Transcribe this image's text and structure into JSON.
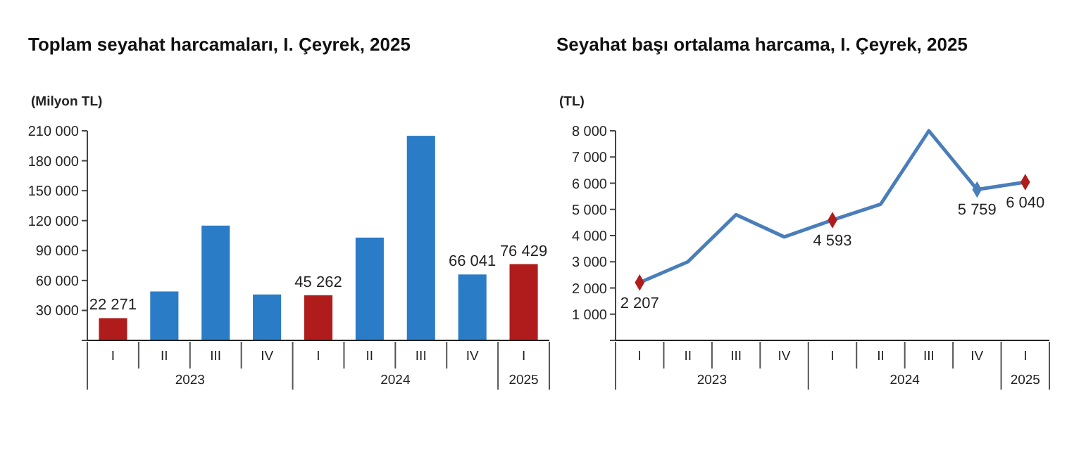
{
  "chart_data": [
    {
      "type": "bar",
      "title": "Toplam seyahat harcamaları, I. Çeyrek, 2025",
      "ylabel": "(Milyon TL)",
      "categories": [
        "I",
        "II",
        "III",
        "IV",
        "I",
        "II",
        "III",
        "IV",
        "I"
      ],
      "values": [
        22271,
        49000,
        115000,
        46000,
        45262,
        103000,
        205000,
        66041,
        76429
      ],
      "colors": [
        "#b01c1c",
        "#2a7cc7",
        "#2a7cc7",
        "#2a7cc7",
        "#b01c1c",
        "#2a7cc7",
        "#2a7cc7",
        "#2a7cc7",
        "#b01c1c"
      ],
      "value_labels": [
        "22 271",
        null,
        null,
        null,
        "45 262",
        null,
        null,
        "66 041",
        "76 429"
      ],
      "ylim": [
        0,
        210000
      ],
      "yticks": [
        {
          "value": 0,
          "label": null
        },
        {
          "value": 30000,
          "label": "30 000"
        },
        {
          "value": 60000,
          "label": "60 000"
        },
        {
          "value": 90000,
          "label": "90 000"
        },
        {
          "value": 120000,
          "label": "120 000"
        },
        {
          "value": 150000,
          "label": "150 000"
        },
        {
          "value": 180000,
          "label": "180 000"
        },
        {
          "value": 210000,
          "label": "210 000"
        }
      ],
      "annotations": [
        "2023",
        "2024",
        "2025"
      ],
      "grid": false
    },
    {
      "type": "line",
      "title": "Seyahat başı ortalama harcama, I. Çeyrek, 2025",
      "ylabel": "(TL)",
      "categories": [
        "I",
        "II",
        "III",
        "IV",
        "I",
        "II",
        "III",
        "IV",
        "I"
      ],
      "series": [
        {
          "color": "#4a7ebb",
          "marker": "none",
          "values": [
            2207,
            3000,
            4800,
            3950,
            4593,
            5200,
            8000,
            5759,
            6040
          ]
        },
        {
          "type": "scatter",
          "values": [
            2207,
            null,
            null,
            null,
            4593,
            null,
            null,
            5759,
            6040
          ],
          "colors": [
            "#b01c1c",
            null,
            null,
            null,
            "#b01c1c",
            null,
            null,
            "#4a7ebb",
            "#b01c1c"
          ],
          "value_labels": [
            "2 207",
            null,
            null,
            null,
            "4 593",
            null,
            null,
            "5 759",
            "6 040"
          ]
        }
      ],
      "ylim": [
        0,
        8000
      ],
      "yticks": [
        {
          "value": 0,
          "label": null
        },
        {
          "value": 1000,
          "label": "1 000"
        },
        {
          "value": 2000,
          "label": "2 000"
        },
        {
          "value": 3000,
          "label": "3 000"
        },
        {
          "value": 4000,
          "label": "4 000"
        },
        {
          "value": 5000,
          "label": "5 000"
        },
        {
          "value": 6000,
          "label": "6 000"
        },
        {
          "value": 7000,
          "label": "7 000"
        },
        {
          "value": 8000,
          "label": "8 000"
        }
      ],
      "annotations": [
        "2023",
        "2024",
        "2025"
      ],
      "marker": "diamond",
      "line_style": "solid",
      "grid": false
    }
  ]
}
